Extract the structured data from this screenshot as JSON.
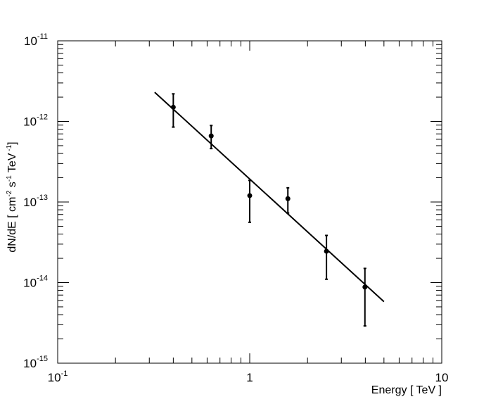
{
  "chart_data": {
    "type": "scatter",
    "title": "",
    "xlabel": "Energy [ TeV ]",
    "ylabel": {
      "parts": [
        "dN/dE [ cm",
        "-2",
        " s",
        "-1",
        " TeV",
        " -1",
        "]"
      ]
    },
    "x_scale": "log",
    "y_scale": "log",
    "xlim": [
      0.1,
      10
    ],
    "ylim": [
      1e-15,
      1e-11
    ],
    "x_tick_labels": [
      {
        "value": 0.1,
        "base": "10",
        "exp": "-1"
      },
      {
        "value": 1,
        "base": "1",
        "exp": ""
      },
      {
        "value": 10,
        "base": "10",
        "exp": ""
      }
    ],
    "y_tick_labels": [
      {
        "value": 1e-11,
        "base": "10",
        "exp": "-11"
      },
      {
        "value": 1e-12,
        "base": "10",
        "exp": "-12"
      },
      {
        "value": 1e-13,
        "base": "10",
        "exp": "-13"
      },
      {
        "value": 1e-14,
        "base": "10",
        "exp": "-14"
      },
      {
        "value": 1e-15,
        "base": "10",
        "exp": "-15"
      }
    ],
    "grid": false,
    "series": [
      {
        "type": "scatter",
        "points": [
          {
            "x": 0.4,
            "y": 1.5e-12,
            "y_low": 8.5e-13,
            "y_high": 2.2e-12
          },
          {
            "x": 0.63,
            "y": 6.6e-13,
            "y_low": 4.6e-13,
            "y_high": 8.9e-13
          },
          {
            "x": 1.0,
            "y": 1.2e-13,
            "y_low": 5.6e-14,
            "y_high": 1.85e-13
          },
          {
            "x": 1.58,
            "y": 1.1e-13,
            "y_low": 7.3e-14,
            "y_high": 1.5e-13
          },
          {
            "x": 2.51,
            "y": 2.45e-14,
            "y_low": 1.1e-14,
            "y_high": 3.85e-14
          },
          {
            "x": 3.98,
            "y": 8.8e-15,
            "y_low": 2.9e-15,
            "y_high": 1.5e-14
          }
        ]
      },
      {
        "type": "line",
        "points": [
          {
            "x": 0.32,
            "y": 2.3e-12
          },
          {
            "x": 5.0,
            "y": 5.8e-15
          }
        ]
      }
    ],
    "colors": {
      "points": "#000000",
      "fit": "#000000",
      "frame": "#000000"
    }
  }
}
